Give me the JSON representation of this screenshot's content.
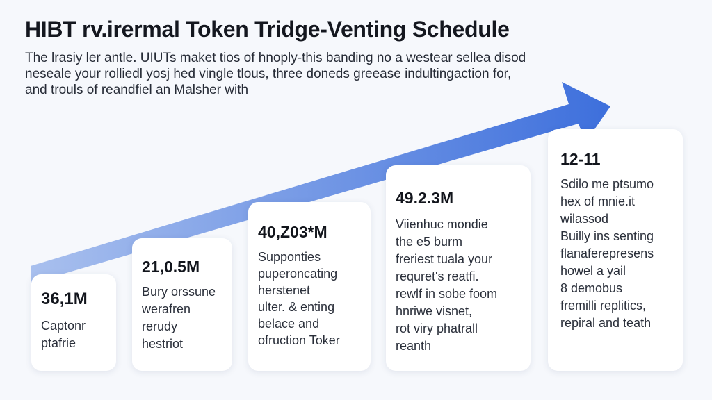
{
  "title": "HIBT rv.irermal Token Tridge-Venting Schedule",
  "intro": {
    "lines": [
      "The lrasiy ler antle. UIUTs maket tios of hnoply-this banding no a westear sellea disod",
      "neseale your rolliedl yosj hed vingle tlous, three doneds greease indultingaction for,",
      "and trouls of reandfiel an Malsher with"
    ]
  },
  "colors": {
    "arrow_light": "#a9c0ee",
    "arrow_dark": "#3d6fdc",
    "card_bg": "#ffffff",
    "page_bg": "#f6f8fc"
  },
  "cards": [
    {
      "value": "36,1M",
      "lines": [
        "Captonr",
        "ptafrie"
      ]
    },
    {
      "value": "21,0.5M",
      "lines": [
        "Bury orssune",
        "werafren",
        "rerudy",
        "hestriot"
      ]
    },
    {
      "value": "40,Z03*M",
      "lines": [
        "Supponties",
        "puperoncating",
        "herstenet",
        "ulter. & enting",
        "belace and",
        "ofruction Toker"
      ]
    },
    {
      "value": "49.2.3M",
      "lines": [
        "Viienhuc mondie",
        "the e5 burm",
        "freriest tuala your",
        "requret's reatfi.",
        "rewlf in sobe foom",
        "hnriwe visnet,",
        "rot viry phatrall",
        "reanth"
      ]
    },
    {
      "value": "12-11",
      "lines": [
        "Sdilo me ptsumo",
        "hex of mnie.it",
        "wilassod",
        "Builly ins senting",
        "flanaferepresens",
        "howel a yail",
        "8 demobus",
        "fremilli replitics,",
        "repiral and teath"
      ]
    }
  ]
}
